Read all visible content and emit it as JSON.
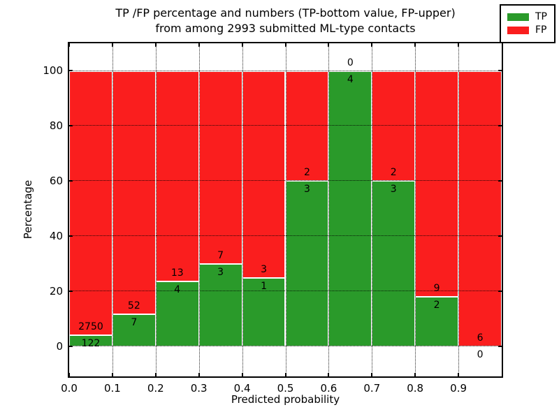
{
  "chart_data": {
    "type": "bar",
    "stacked": true,
    "title_line1": "TP /FP percentage and numbers (TP-bottom value, FP-upper)",
    "title_line2": "from among 2993 submitted ML-type contacts",
    "xlabel": "Predicted probability",
    "ylabel": "Percentage",
    "xlim": [
      0.0,
      1.0
    ],
    "ylim": [
      -10.8,
      110.0
    ],
    "x_ticks": [
      0.0,
      0.1,
      0.2,
      0.3,
      0.4,
      0.5,
      0.6,
      0.7,
      0.8,
      0.9
    ],
    "x_tick_labels": [
      "0.0",
      "0.1",
      "0.2",
      "0.3",
      "0.4",
      "0.5",
      "0.6",
      "0.7",
      "0.8",
      "0.9"
    ],
    "y_ticks": [
      0,
      20,
      40,
      60,
      80,
      100
    ],
    "y_tick_labels": [
      "0",
      "20",
      "40",
      "60",
      "80",
      "100"
    ],
    "grid": "dotted",
    "bin_edges": [
      0.0,
      0.1,
      0.2,
      0.3,
      0.4,
      0.5,
      0.6,
      0.7,
      0.8,
      0.9,
      1.0
    ],
    "bar_edge_color": "#ffffff",
    "legend_position": "upper right",
    "series": [
      {
        "name": "TP",
        "color": "#2a9a2a",
        "counts": [
          122,
          7,
          4,
          3,
          1,
          3,
          4,
          3,
          2,
          0
        ],
        "pct": [
          4.25,
          11.86,
          23.53,
          30.0,
          25.0,
          60.0,
          100.0,
          60.0,
          18.18,
          0.0
        ]
      },
      {
        "name": "FP",
        "color": "#fa1e1e",
        "counts": [
          2750,
          52,
          13,
          7,
          3,
          2,
          0,
          2,
          9,
          6
        ],
        "pct": [
          95.75,
          88.14,
          76.47,
          70.0,
          75.0,
          40.0,
          0.0,
          40.0,
          81.82,
          100.0
        ]
      }
    ]
  }
}
